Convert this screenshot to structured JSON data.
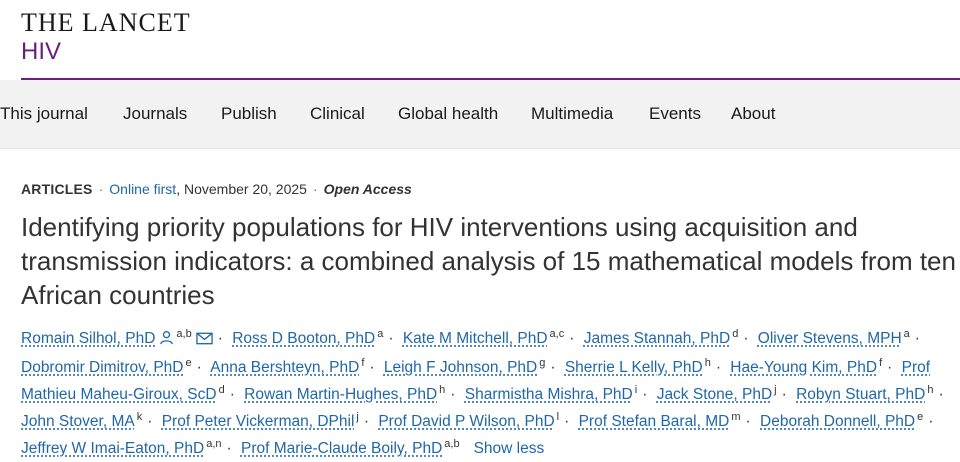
{
  "journal": {
    "name": "THE LANCET",
    "sub": "HIV"
  },
  "nav": [
    {
      "label": "This journal"
    },
    {
      "label": "Journals"
    },
    {
      "label": "Publish"
    },
    {
      "label": "Clinical"
    },
    {
      "label": "Global health"
    },
    {
      "label": "Multimedia"
    },
    {
      "label": "Events"
    },
    {
      "label": "About"
    }
  ],
  "meta": {
    "type": "ARTICLES",
    "online": "Online first",
    "date": ", November 20, 2025",
    "access": "Open Access"
  },
  "title": "Identifying priority populations for HIV interventions using acquisition and transmission indicators: a combined analysis of 15 mathematical models from ten African countries",
  "authors": [
    {
      "name": "Romain Silhol, PhD",
      "aff": "a,b"
    },
    {
      "name": "Ross D Booton, PhD",
      "aff": "a"
    },
    {
      "name": "Kate M Mitchell, PhD",
      "aff": "a,c"
    },
    {
      "name": "James Stannah, PhD",
      "aff": "d"
    },
    {
      "name": "Oliver Stevens, MPH",
      "aff": "a"
    },
    {
      "name": "Dobromir Dimitrov, PhD",
      "aff": "e"
    },
    {
      "name": "Anna Bershteyn, PhD",
      "aff": "f"
    },
    {
      "name": "Leigh F Johnson, PhD",
      "aff": "g"
    },
    {
      "name": "Sherrie L Kelly, PhD",
      "aff": "h"
    },
    {
      "name": "Hae-Young Kim, PhD",
      "aff": "f"
    },
    {
      "name": "Prof Mathieu Maheu-Giroux, ScD",
      "aff": "d"
    },
    {
      "name": "Rowan Martin-Hughes, PhD",
      "aff": "h"
    },
    {
      "name": "Sharmistha Mishra, PhD",
      "aff": "i"
    },
    {
      "name": "Jack Stone, PhD",
      "aff": "j"
    },
    {
      "name": "Robyn Stuart, PhD",
      "aff": "h"
    },
    {
      "name": "John Stover, MA",
      "aff": "k"
    },
    {
      "name": "Prof Peter Vickerman, DPhil",
      "aff": "j"
    },
    {
      "name": "Prof David P Wilson, PhD",
      "aff": "l"
    },
    {
      "name": "Prof Stefan Baral, MD",
      "aff": "m"
    },
    {
      "name": "Deborah Donnell, PhD",
      "aff": "e"
    },
    {
      "name": "Jeffrey W Imai-Eaton, PhD",
      "aff": "a,n"
    },
    {
      "name": "Prof Marie-Claude Boily, PhD",
      "aff": "a,b"
    }
  ],
  "show_less": "Show less",
  "colors": {
    "brand_purple": "#6b1f7c",
    "link_blue": "#1f67a8",
    "nav_bg": "#f2f2f2"
  },
  "icons": [
    "person-icon",
    "envelope-icon"
  ]
}
